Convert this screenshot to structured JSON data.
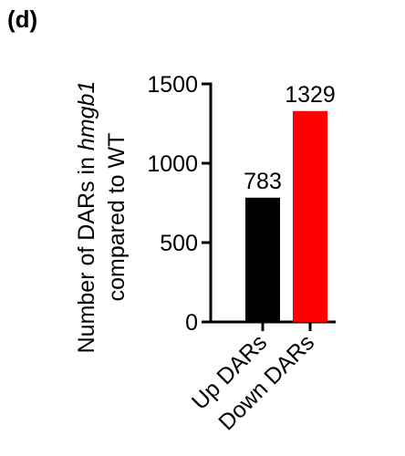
{
  "panel": {
    "label": "(d)"
  },
  "chart_data": {
    "type": "bar",
    "categories": [
      "Up DARs",
      "Down DARs"
    ],
    "values": [
      783,
      1329
    ],
    "data_labels": [
      "783",
      "1329"
    ],
    "colors": [
      "#000000",
      "#ff0000"
    ],
    "ylabel_line1_prefix": "Number of DARs in ",
    "ylabel_line1_italic": "hmgb1",
    "ylabel_line2": "compared to WT",
    "ylim": [
      0,
      1500
    ],
    "yticks": [
      0,
      500,
      1000,
      1500
    ],
    "ytick_labels": [
      "0",
      "500",
      "1000",
      "1500"
    ],
    "grid": false,
    "legend": "none"
  }
}
